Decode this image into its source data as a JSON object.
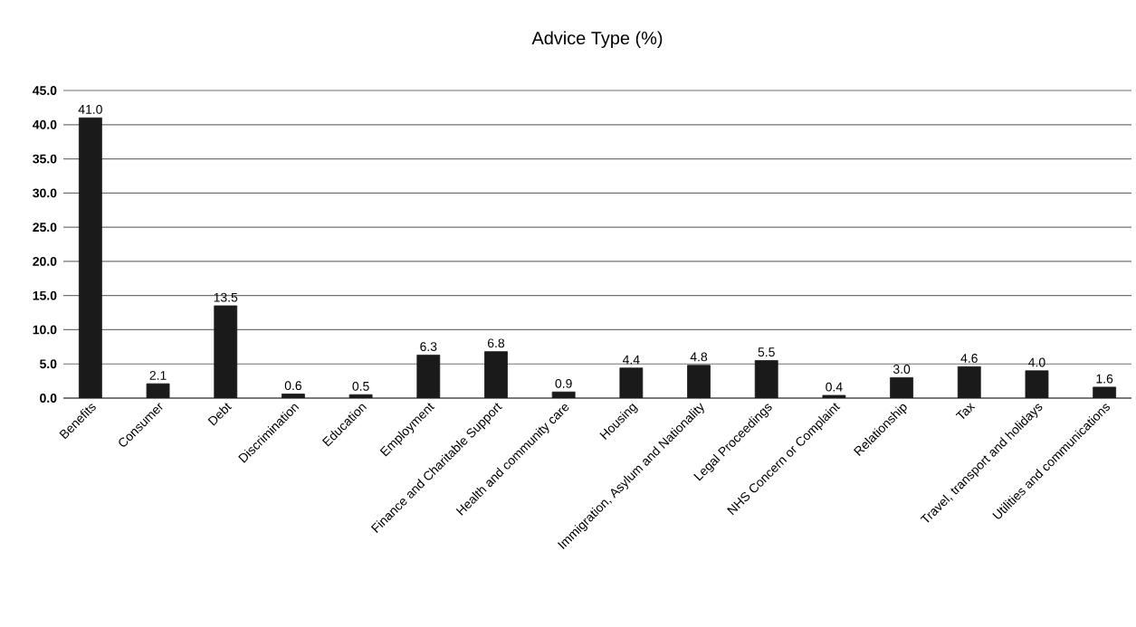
{
  "chart_data": {
    "type": "bar",
    "title": "Advice Type (%)",
    "categories": [
      "Benefits",
      "Consumer",
      "Debt",
      "Discrimination",
      "Education",
      "Employment",
      "Finance and Charitable Support",
      "Health and community care",
      "Housing",
      "Immigration, Asylum and Nationality",
      "Legal Proceedings",
      "NHS Concern or Complaint",
      "Relationship",
      "Tax",
      "Travel, transport and holidays",
      "Utilities and communications"
    ],
    "values": [
      41.0,
      2.1,
      13.5,
      0.6,
      0.5,
      6.3,
      6.8,
      0.9,
      4.4,
      4.8,
      5.5,
      0.4,
      3.0,
      4.6,
      4.0,
      1.6
    ],
    "value_labels": [
      "41.0",
      "2.1",
      "13.5",
      "0.6",
      "0.5",
      "6.3",
      "6.8",
      "0.9",
      "4.4",
      "4.8",
      "5.5",
      "0.4",
      "3.0",
      "4.6",
      "4.0",
      "1.6"
    ],
    "color": "#1a1a1a",
    "ylim": [
      0,
      45
    ],
    "yticks": [
      {
        "value": 0,
        "label": "0.0"
      },
      {
        "value": 5,
        "label": "5.0"
      },
      {
        "value": 10,
        "label": "10.0"
      },
      {
        "value": 15,
        "label": "15.0"
      },
      {
        "value": 20,
        "label": "20.0"
      },
      {
        "value": 25,
        "label": "25.0"
      },
      {
        "value": 30,
        "label": "30.0"
      },
      {
        "value": 35,
        "label": "35.0"
      },
      {
        "value": 40,
        "label": "40.0"
      },
      {
        "value": 45,
        "label": "45.0"
      }
    ],
    "grid": "y"
  }
}
